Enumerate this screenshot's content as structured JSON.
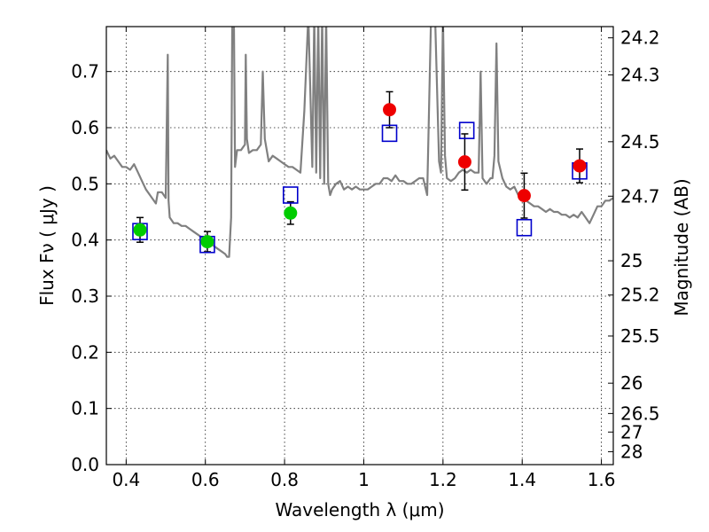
{
  "chart_data": {
    "type": "scatter",
    "xlabel": "Wavelength  λ (μm)",
    "ylabel": "Flux  Fν  ( μJy )",
    "y2label": "Magnitude (AB)",
    "xlim": [
      0.35,
      1.63
    ],
    "ylim": [
      0.0,
      0.78
    ],
    "grid": true,
    "x_ticks": [
      0.4,
      0.6,
      0.8,
      1.0,
      1.2,
      1.4,
      1.6
    ],
    "x_tick_labels": [
      "0.4",
      "0.6",
      "0.8",
      "1",
      "1.2",
      "1.4",
      "1.6"
    ],
    "y_ticks": [
      0.0,
      0.1,
      0.2,
      0.3,
      0.4,
      0.5,
      0.6,
      0.7
    ],
    "y_tick_labels": [
      "0.0",
      "0.1",
      "0.2",
      "0.3",
      "0.4",
      "0.5",
      "0.6",
      "0.7"
    ],
    "right_ticks": [
      {
        "label": "24.2",
        "flux": 0.76
      },
      {
        "label": "24.3",
        "flux": 0.694
      },
      {
        "label": "24.5",
        "flux": 0.575
      },
      {
        "label": "24.7",
        "flux": 0.478
      },
      {
        "label": "25",
        "flux": 0.363
      },
      {
        "label": "25.2",
        "flux": 0.302
      },
      {
        "label": "25.5",
        "flux": 0.229
      },
      {
        "label": "26",
        "flux": 0.145
      },
      {
        "label": "26.5",
        "flux": 0.091
      },
      {
        "label": "27",
        "flux": 0.058
      },
      {
        "label": "28",
        "flux": 0.023
      }
    ],
    "colors": {
      "model": "#808080",
      "green": "#00cc00",
      "red": "#ee0000",
      "square": "#0000cc",
      "errorbar": "#000000"
    },
    "series": [
      {
        "kind": "model_spectrum",
        "x": [
          0.35,
          0.36,
          0.37,
          0.38,
          0.39,
          0.4,
          0.41,
          0.42,
          0.43,
          0.44,
          0.45,
          0.46,
          0.47,
          0.475,
          0.48,
          0.49,
          0.5,
          0.505,
          0.507,
          0.51,
          0.52,
          0.53,
          0.54,
          0.55,
          0.56,
          0.57,
          0.58,
          0.59,
          0.6,
          0.61,
          0.62,
          0.63,
          0.64,
          0.65,
          0.655,
          0.66,
          0.665,
          0.668,
          0.672,
          0.675,
          0.68,
          0.69,
          0.7,
          0.702,
          0.705,
          0.71,
          0.72,
          0.73,
          0.74,
          0.745,
          0.75,
          0.76,
          0.77,
          0.78,
          0.79,
          0.8,
          0.81,
          0.82,
          0.83,
          0.84,
          0.85,
          0.86,
          0.87,
          0.875,
          0.88,
          0.885,
          0.89,
          0.895,
          0.9,
          0.905,
          0.91,
          0.915,
          0.92,
          0.93,
          0.94,
          0.95,
          0.96,
          0.97,
          0.98,
          0.99,
          1.0,
          1.01,
          1.02,
          1.03,
          1.04,
          1.05,
          1.06,
          1.07,
          1.08,
          1.09,
          1.1,
          1.11,
          1.12,
          1.13,
          1.14,
          1.15,
          1.16,
          1.17,
          1.18,
          1.19,
          1.195,
          1.2,
          1.205,
          1.21,
          1.22,
          1.23,
          1.24,
          1.25,
          1.26,
          1.27,
          1.28,
          1.29,
          1.295,
          1.3,
          1.31,
          1.32,
          1.325,
          1.33,
          1.335,
          1.34,
          1.35,
          1.36,
          1.37,
          1.38,
          1.39,
          1.4,
          1.41,
          1.42,
          1.43,
          1.44,
          1.45,
          1.46,
          1.47,
          1.48,
          1.49,
          1.5,
          1.51,
          1.52,
          1.53,
          1.54,
          1.55,
          1.56,
          1.57,
          1.58,
          1.59,
          1.6,
          1.61,
          1.62,
          1.63
        ],
        "y": [
          0.56,
          0.545,
          0.55,
          0.54,
          0.53,
          0.53,
          0.525,
          0.535,
          0.52,
          0.505,
          0.49,
          0.48,
          0.47,
          0.465,
          0.485,
          0.485,
          0.475,
          0.73,
          0.47,
          0.44,
          0.43,
          0.43,
          0.425,
          0.425,
          0.42,
          0.415,
          0.41,
          0.405,
          0.4,
          0.395,
          0.39,
          0.385,
          0.38,
          0.375,
          0.37,
          0.37,
          0.44,
          0.8,
          0.8,
          0.53,
          0.56,
          0.56,
          0.57,
          0.73,
          0.58,
          0.555,
          0.56,
          0.56,
          0.57,
          0.7,
          0.58,
          0.54,
          0.55,
          0.545,
          0.54,
          0.535,
          0.53,
          0.53,
          0.525,
          0.52,
          0.63,
          0.8,
          0.53,
          0.8,
          0.52,
          0.8,
          0.51,
          0.8,
          0.5,
          0.8,
          0.5,
          0.48,
          0.49,
          0.5,
          0.505,
          0.49,
          0.495,
          0.49,
          0.495,
          0.49,
          0.49,
          0.49,
          0.495,
          0.5,
          0.5,
          0.51,
          0.51,
          0.505,
          0.515,
          0.505,
          0.505,
          0.5,
          0.5,
          0.505,
          0.51,
          0.51,
          0.48,
          0.8,
          0.8,
          0.54,
          0.52,
          0.8,
          0.55,
          0.51,
          0.505,
          0.51,
          0.52,
          0.525,
          0.52,
          0.525,
          0.52,
          0.52,
          0.7,
          0.51,
          0.5,
          0.51,
          0.51,
          0.55,
          0.75,
          0.54,
          0.51,
          0.495,
          0.49,
          0.495,
          0.48,
          0.475,
          0.47,
          0.465,
          0.46,
          0.46,
          0.455,
          0.45,
          0.455,
          0.45,
          0.45,
          0.445,
          0.445,
          0.44,
          0.445,
          0.44,
          0.45,
          0.44,
          0.43,
          0.445,
          0.46,
          0.46,
          0.47,
          0.47,
          0.475
        ]
      },
      {
        "name": "green_points",
        "x": [
          0.435,
          0.605,
          0.815
        ],
        "y": [
          0.418,
          0.397,
          0.448
        ],
        "err": [
          0.022,
          0.018,
          0.02
        ]
      },
      {
        "name": "red_points",
        "x": [
          1.065,
          1.255,
          1.405,
          1.545
        ],
        "y": [
          0.632,
          0.539,
          0.479,
          0.532
        ],
        "err": [
          0.032,
          0.05,
          0.04,
          0.03
        ]
      },
      {
        "name": "open_squares",
        "x": [
          0.435,
          0.605,
          0.815,
          1.065,
          1.26,
          1.405,
          1.545
        ],
        "y": [
          0.415,
          0.392,
          0.48,
          0.59,
          0.595,
          0.422,
          0.523
        ]
      }
    ]
  }
}
